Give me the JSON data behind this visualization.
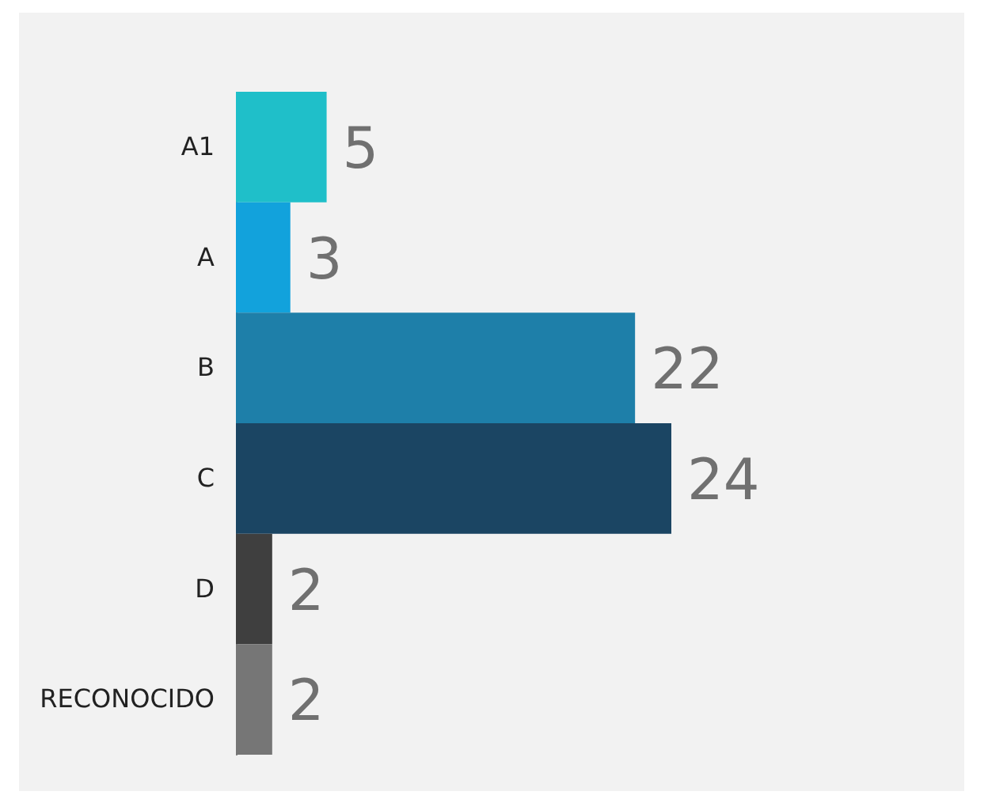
{
  "chart_data": {
    "type": "bar",
    "orientation": "horizontal",
    "categories": [
      "A1",
      "A",
      "B",
      "C",
      "D",
      "RECONOCIDO"
    ],
    "values": [
      5,
      3,
      22,
      24,
      2,
      2
    ],
    "colors": [
      "#1fbfc9",
      "#12a2dc",
      "#1e7fa9",
      "#1b4563",
      "#3f3f3f",
      "#767676"
    ],
    "data_labels": true,
    "grid": false,
    "legend": false
  }
}
